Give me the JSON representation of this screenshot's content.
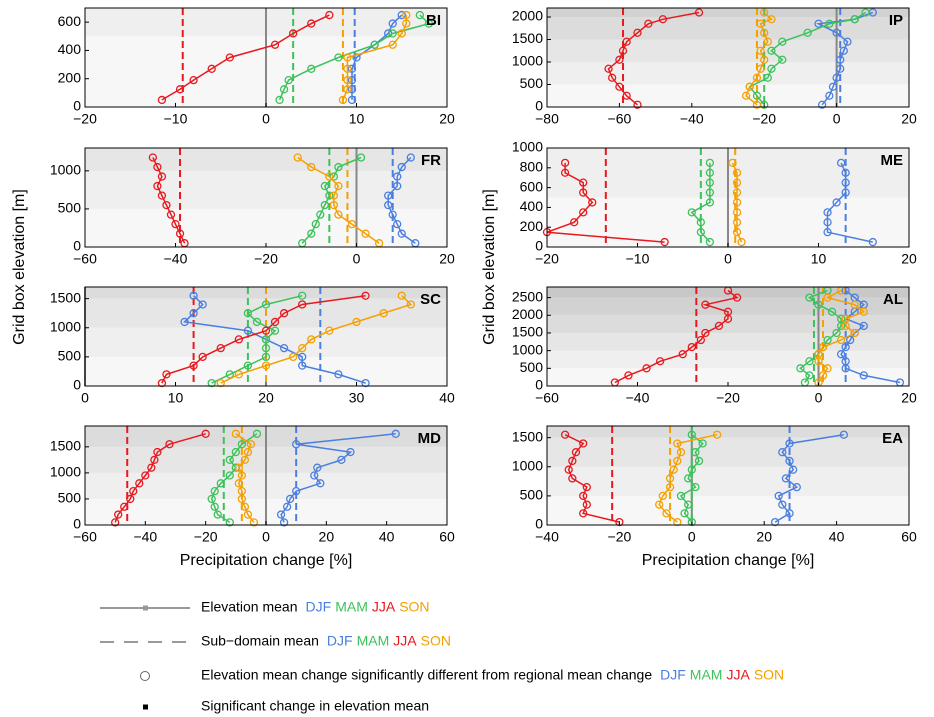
{
  "chart_data": [
    {
      "type": "line",
      "title": "BI",
      "y": [
        50,
        125,
        190,
        270,
        350,
        440,
        520,
        590,
        650
      ],
      "ylim": [
        0,
        700
      ],
      "yticks": [
        0,
        200,
        400,
        600
      ],
      "xlim": [
        -20,
        20
      ],
      "xticks": [
        {
          "value": -20,
          "label": "−20"
        },
        {
          "value": -10,
          "label": "−10"
        },
        0,
        10,
        20
      ],
      "series": [
        {
          "name": "DJF",
          "color": "#4a7fe0",
          "values": [
            9.5,
            9.5,
            9.5,
            9.5,
            10,
            12,
            13.5,
            14,
            15
          ],
          "mean": 9.8
        },
        {
          "name": "MAM",
          "color": "#3cc25a",
          "values": [
            1.5,
            2,
            2.5,
            5,
            8,
            12,
            14,
            18,
            17
          ],
          "mean": 3
        },
        {
          "name": "JJA",
          "color": "#e8191e",
          "values": [
            -11.5,
            -9.5,
            -8,
            -6,
            -4,
            1,
            3,
            5,
            7
          ],
          "mean": -9.2
        },
        {
          "name": "SON",
          "color": "#f5a000",
          "values": [
            8.5,
            9,
            9,
            9,
            9,
            14,
            15,
            15.5,
            15.5
          ],
          "mean": 8.5
        }
      ]
    },
    {
      "type": "line",
      "title": "IP",
      "y": [
        50,
        250,
        450,
        650,
        850,
        1050,
        1250,
        1450,
        1650,
        1850,
        1950,
        2100
      ],
      "ylim": [
        0,
        2200
      ],
      "yticks": [
        0,
        500,
        1000,
        1500,
        2000
      ],
      "xlim": [
        -80,
        20
      ],
      "xticks": [
        {
          "value": -80,
          "label": "−80"
        },
        {
          "value": -60,
          "label": "−60"
        },
        {
          "value": -40,
          "label": "−40"
        },
        {
          "value": -20,
          "label": "−20"
        },
        0,
        20
      ],
      "series": [
        {
          "name": "DJF",
          "color": "#4a7fe0",
          "values": [
            -4,
            -2,
            -1,
            0,
            1,
            1,
            2,
            3,
            0,
            -5,
            5,
            10
          ],
          "mean": 1
        },
        {
          "name": "MAM",
          "color": "#3cc25a",
          "values": [
            -20,
            -22,
            -24,
            -19,
            -18,
            -15,
            -18,
            -15,
            -8,
            -2,
            5,
            8
          ],
          "mean": -20
        },
        {
          "name": "JJA",
          "color": "#e8191e",
          "values": [
            -55,
            -58,
            -60,
            -62,
            -63,
            -60,
            -59,
            -58,
            -55,
            -52,
            -48,
            -38
          ],
          "mean": -59
        },
        {
          "name": "SON",
          "color": "#f5a000",
          "values": [
            -22,
            -25,
            -24,
            -22,
            -21,
            -20,
            -21,
            -19,
            -20,
            -21,
            -18,
            -20
          ],
          "mean": -22
        }
      ]
    },
    {
      "type": "line",
      "title": "FR",
      "y": [
        50,
        175,
        300,
        425,
        550,
        675,
        800,
        925,
        1050,
        1175
      ],
      "ylim": [
        0,
        1300
      ],
      "yticks": [
        0,
        500,
        1000
      ],
      "xlim": [
        -60,
        20
      ],
      "xticks": [
        {
          "value": -60,
          "label": "−60"
        },
        {
          "value": -40,
          "label": "−40"
        },
        {
          "value": -20,
          "label": "−20"
        },
        0,
        20
      ],
      "series": [
        {
          "name": "DJF",
          "color": "#4a7fe0",
          "values": [
            13,
            10,
            9,
            8,
            7,
            7,
            9,
            9,
            10,
            12
          ],
          "mean": 8
        },
        {
          "name": "MAM",
          "color": "#3cc25a",
          "values": [
            -12,
            -10,
            -9,
            -8,
            -7,
            -6,
            -7,
            -5,
            -4,
            1
          ],
          "mean": -6
        },
        {
          "name": "JJA",
          "color": "#e8191e",
          "values": [
            -38,
            -39,
            -40,
            -41,
            -42,
            -43,
            -44,
            -43,
            -44,
            -45
          ],
          "mean": -39
        },
        {
          "name": "SON",
          "color": "#f5a000",
          "values": [
            5,
            2,
            -1,
            -4,
            -5,
            -5,
            -4,
            -6,
            -10,
            -13
          ],
          "mean": -2
        }
      ]
    },
    {
      "type": "line",
      "title": "ME",
      "y": [
        50,
        150,
        250,
        350,
        450,
        550,
        650,
        750,
        850
      ],
      "ylim": [
        0,
        1000
      ],
      "yticks": [
        0,
        200,
        400,
        600,
        800,
        1000
      ],
      "xlim": [
        -20,
        20
      ],
      "xticks": [
        {
          "value": -20,
          "label": "−20"
        },
        {
          "value": -10,
          "label": "−10"
        },
        0,
        10,
        20
      ],
      "series": [
        {
          "name": "DJF",
          "color": "#4a7fe0",
          "values": [
            16,
            11,
            11,
            11,
            12,
            13,
            13,
            13,
            12.5
          ],
          "mean": 13
        },
        {
          "name": "MAM",
          "color": "#3cc25a",
          "values": [
            -2,
            -3,
            -3,
            -4,
            -2,
            -2,
            -2,
            -2,
            -2
          ],
          "mean": -3
        },
        {
          "name": "JJA",
          "color": "#e8191e",
          "values": [
            -7,
            -20,
            -17,
            -16,
            -15,
            -16,
            -16,
            -18,
            -18
          ],
          "mean": -13.5
        },
        {
          "name": "SON",
          "color": "#f5a000",
          "values": [
            1.5,
            1,
            1,
            1,
            1,
            1,
            1,
            1,
            0.5
          ],
          "mean": 0.8
        }
      ]
    },
    {
      "type": "line",
      "title": "SC",
      "y": [
        50,
        200,
        350,
        500,
        650,
        800,
        950,
        1100,
        1250,
        1400,
        1550
      ],
      "ylim": [
        0,
        1700
      ],
      "yticks": [
        0,
        500,
        1000,
        1500
      ],
      "xlim": [
        0,
        40
      ],
      "xticks": [
        0,
        10,
        20,
        30,
        40
      ],
      "series": [
        {
          "name": "DJF",
          "color": "#4a7fe0",
          "values": [
            31,
            28,
            24,
            24,
            22,
            20,
            18,
            11,
            12,
            13,
            12
          ],
          "mean": 26
        },
        {
          "name": "MAM",
          "color": "#3cc25a",
          "values": [
            14,
            16,
            18,
            20,
            20,
            20,
            21,
            19,
            18,
            20,
            24
          ],
          "mean": 18
        },
        {
          "name": "JJA",
          "color": "#e8191e",
          "values": [
            8.5,
            9,
            12,
            13,
            15,
            17,
            20,
            21,
            22,
            24,
            31
          ],
          "mean": 12
        },
        {
          "name": "SON",
          "color": "#f5a000",
          "values": [
            15,
            17,
            20,
            23,
            24,
            25,
            27,
            30,
            33,
            36,
            35
          ],
          "mean": 20
        }
      ]
    },
    {
      "type": "line",
      "title": "AL",
      "y": [
        100,
        300,
        500,
        700,
        900,
        1100,
        1300,
        1500,
        1700,
        1900,
        2100,
        2300,
        2500,
        2700
      ],
      "ylim": [
        0,
        2800
      ],
      "yticks": [
        0,
        500,
        1000,
        1500,
        2000,
        2500
      ],
      "xlim": [
        -60,
        20
      ],
      "xticks": [
        {
          "value": -60,
          "label": "−60"
        },
        {
          "value": -40,
          "label": "−40"
        },
        {
          "value": -20,
          "label": "−20"
        },
        0,
        20
      ],
      "series": [
        {
          "name": "DJF",
          "color": "#4a7fe0",
          "values": [
            18,
            10,
            6,
            6,
            5,
            6,
            7,
            8,
            10,
            6,
            8,
            10,
            8,
            6
          ],
          "mean": 6
        },
        {
          "name": "MAM",
          "color": "#3cc25a",
          "values": [
            -3,
            -2,
            -4,
            -2,
            0,
            1,
            2,
            4,
            5,
            5,
            3,
            0,
            -2,
            2
          ],
          "mean": -1
        },
        {
          "name": "JJA",
          "color": "#e8191e",
          "values": [
            -45,
            -42,
            -38,
            -35,
            -30,
            -28,
            -26,
            -25,
            -22,
            -20,
            -20,
            -25,
            -18,
            -20
          ],
          "mean": -27
        },
        {
          "name": "SON",
          "color": "#f5a000",
          "values": [
            0,
            1,
            2,
            0,
            0,
            1,
            5,
            8,
            6,
            6,
            10,
            8,
            2,
            5
          ],
          "mean": 1
        }
      ]
    },
    {
      "type": "line",
      "title": "MD",
      "y": [
        50,
        200,
        350,
        500,
        650,
        800,
        950,
        1100,
        1250,
        1400,
        1550,
        1750
      ],
      "ylim": [
        0,
        1900
      ],
      "yticks": [
        0,
        500,
        1000,
        1500
      ],
      "xlim": [
        -60,
        60
      ],
      "xticks": [
        {
          "value": -60,
          "label": "−60"
        },
        {
          "value": -40,
          "label": "−40"
        },
        {
          "value": -20,
          "label": "−20"
        },
        0,
        20,
        40,
        60
      ],
      "series": [
        {
          "name": "DJF",
          "color": "#4a7fe0",
          "values": [
            6,
            5,
            7,
            8,
            10,
            18,
            16,
            17,
            25,
            28,
            10,
            43
          ],
          "mean": 10
        },
        {
          "name": "MAM",
          "color": "#3cc25a",
          "values": [
            -12,
            -16,
            -17,
            -18,
            -17,
            -15,
            -12,
            -10,
            -12,
            -10,
            -8,
            -3
          ],
          "mean": -14
        },
        {
          "name": "JJA",
          "color": "#e8191e",
          "values": [
            -50,
            -49,
            -47,
            -45,
            -44,
            -42,
            -40,
            -38,
            -37,
            -36,
            -32,
            -20
          ],
          "mean": -46
        },
        {
          "name": "SON",
          "color": "#f5a000",
          "values": [
            -4,
            -6,
            -7,
            -8,
            -8,
            -9,
            -8,
            -9,
            -7,
            -6,
            -5,
            -10
          ],
          "mean": -8
        }
      ]
    },
    {
      "type": "line",
      "title": "EA",
      "y": [
        50,
        200,
        350,
        500,
        650,
        800,
        950,
        1100,
        1250,
        1400,
        1550
      ],
      "ylim": [
        0,
        1700
      ],
      "yticks": [
        0,
        500,
        1000,
        1500
      ],
      "xlim": [
        -40,
        60
      ],
      "xticks": [
        {
          "value": -40,
          "label": "−40"
        },
        {
          "value": -20,
          "label": "−20"
        },
        0,
        20,
        40,
        60
      ],
      "series": [
        {
          "name": "DJF",
          "color": "#4a7fe0",
          "values": [
            23,
            27,
            25,
            24,
            29,
            26,
            28,
            27,
            25,
            27,
            42
          ],
          "mean": 27
        },
        {
          "name": "MAM",
          "color": "#3cc25a",
          "values": [
            0,
            -2,
            -1,
            -3,
            1,
            -1,
            0,
            2,
            1,
            3,
            0
          ],
          "mean": 0
        },
        {
          "name": "JJA",
          "color": "#e8191e",
          "values": [
            -20,
            -30,
            -29,
            -30,
            -29,
            -33,
            -34,
            -33,
            -32,
            -30,
            -35
          ],
          "mean": -22
        },
        {
          "name": "SON",
          "color": "#f5a000",
          "values": [
            -4,
            -7,
            -9,
            -8,
            -6,
            -6,
            -5,
            -4,
            -3,
            -4,
            7
          ],
          "mean": -6
        }
      ]
    }
  ],
  "ylabel": "Grid box elevation [m]",
  "xlabel": "Precipitation change [%]",
  "legend": [
    "Elevation mean",
    "Sub−domain mean",
    "Elevation mean change significantly different from regional mean change",
    "Significant change in elevation mean"
  ]
}
